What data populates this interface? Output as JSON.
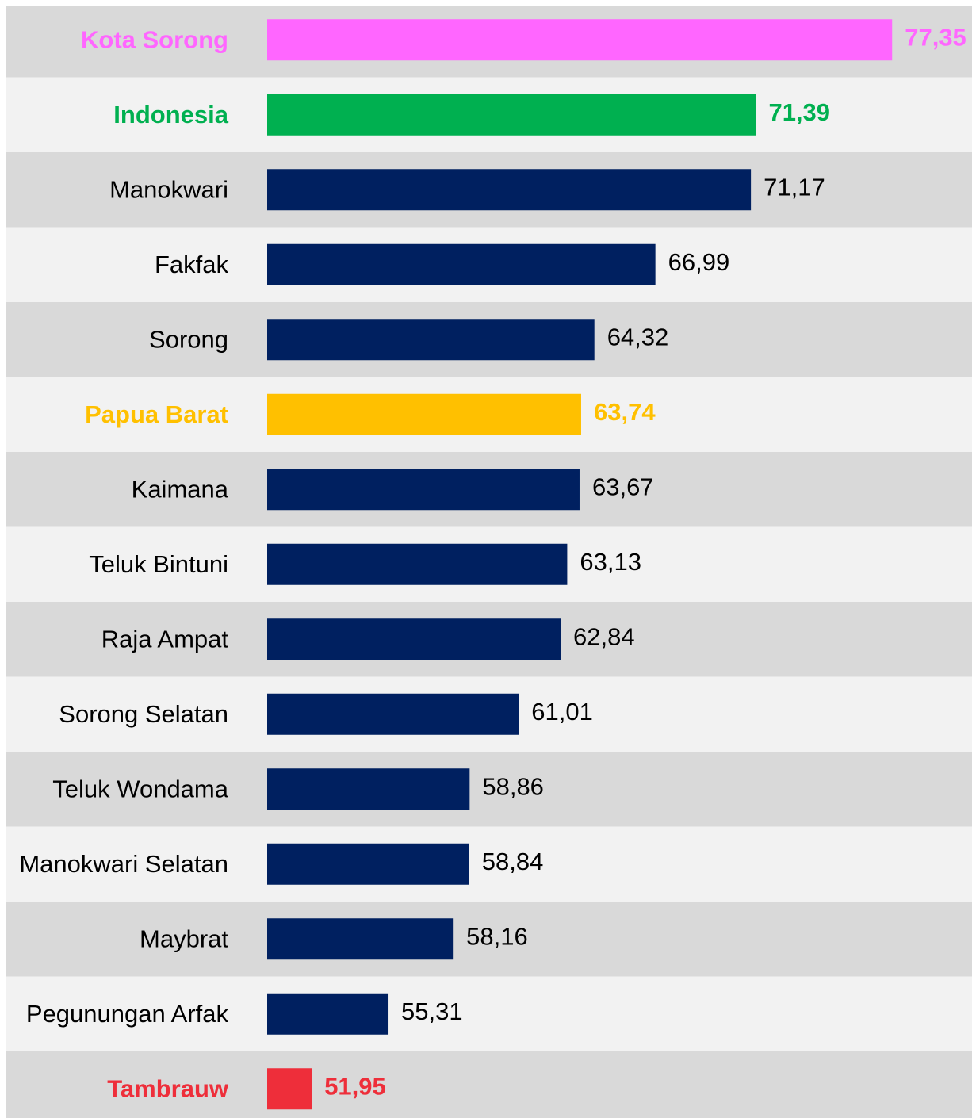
{
  "chart_data": {
    "type": "barh",
    "categories": [
      "Kota Sorong",
      "Indonesia",
      "Manokwari",
      "Fakfak",
      "Sorong",
      "Papua Barat",
      "Kaimana",
      "Teluk Bintuni",
      "Raja Ampat",
      "Sorong Selatan",
      "Teluk Wondama",
      "Manokwari Selatan",
      "Maybrat",
      "Pegunungan Arfak",
      "Tambrauw"
    ],
    "values": [
      77.35,
      71.39,
      71.17,
      66.99,
      64.32,
      63.74,
      63.67,
      63.13,
      62.84,
      61.01,
      58.86,
      58.84,
      58.16,
      55.31,
      51.95
    ],
    "value_labels": [
      "77,35",
      "71,39",
      "71,17",
      "66,99",
      "64,32",
      "63,74",
      "63,67",
      "63,13",
      "62,84",
      "61,01",
      "58,86",
      "58,84",
      "58,16",
      "55,31",
      "51,95"
    ],
    "colors": [
      "#ff66ff",
      "#00b050",
      "#002060",
      "#002060",
      "#002060",
      "#ffc000",
      "#002060",
      "#002060",
      "#002060",
      "#002060",
      "#002060",
      "#002060",
      "#002060",
      "#002060",
      "#ee2e3a"
    ],
    "label_colors": [
      "#ff66ff",
      "#00b050",
      "#000000",
      "#000000",
      "#000000",
      "#ffc000",
      "#000000",
      "#000000",
      "#000000",
      "#000000",
      "#000000",
      "#000000",
      "#000000",
      "#000000",
      "#ee2e3a"
    ],
    "bold": [
      true,
      true,
      false,
      false,
      false,
      true,
      false,
      false,
      false,
      false,
      false,
      false,
      false,
      false,
      true
    ],
    "xlim": [
      50,
      80
    ]
  }
}
